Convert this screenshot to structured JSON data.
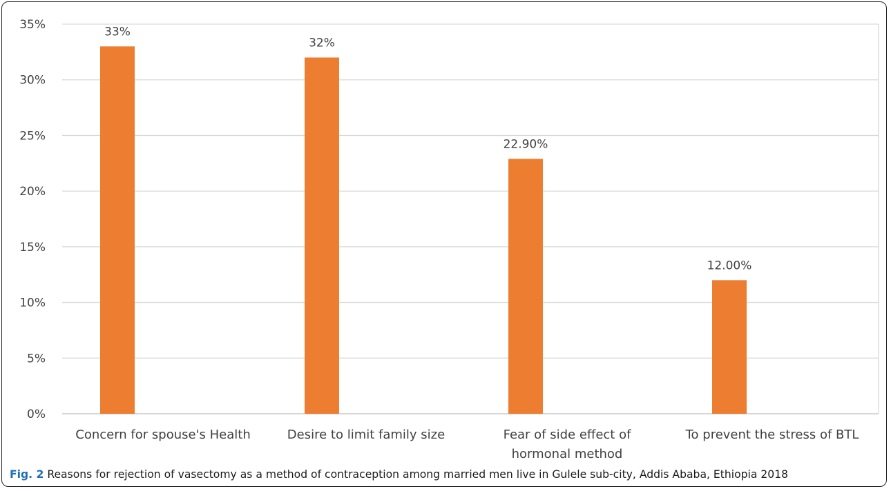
{
  "chart_data": {
    "type": "bar",
    "categories": [
      [
        "Concern for spouse's Health"
      ],
      [
        "Desire to limit family size"
      ],
      [
        "Fear of  side effect of",
        "hormonal method"
      ],
      [
        "To prevent the stress of  BTL"
      ]
    ],
    "values": [
      33,
      32,
      22.9,
      12
    ],
    "data_labels": [
      "33%",
      "32%",
      "22.90%",
      "12.00%"
    ],
    "y_ticks": [
      "0%",
      "5%",
      "10%",
      "15%",
      "20%",
      "25%",
      "30%",
      "35%"
    ],
    "ylim": [
      0,
      35
    ],
    "grid": true,
    "bar_color": "#ED7D31",
    "grid_color": "#d9d9d9",
    "axis_color": "#bfbfbf",
    "text_color": "#404040"
  },
  "caption": {
    "label": "Fig. 2",
    "text": " Reasons for rejection of vasectomy as a method of contraception among married men live in Gulele sub-city, Addis Ababa, Ethiopia 2018"
  }
}
